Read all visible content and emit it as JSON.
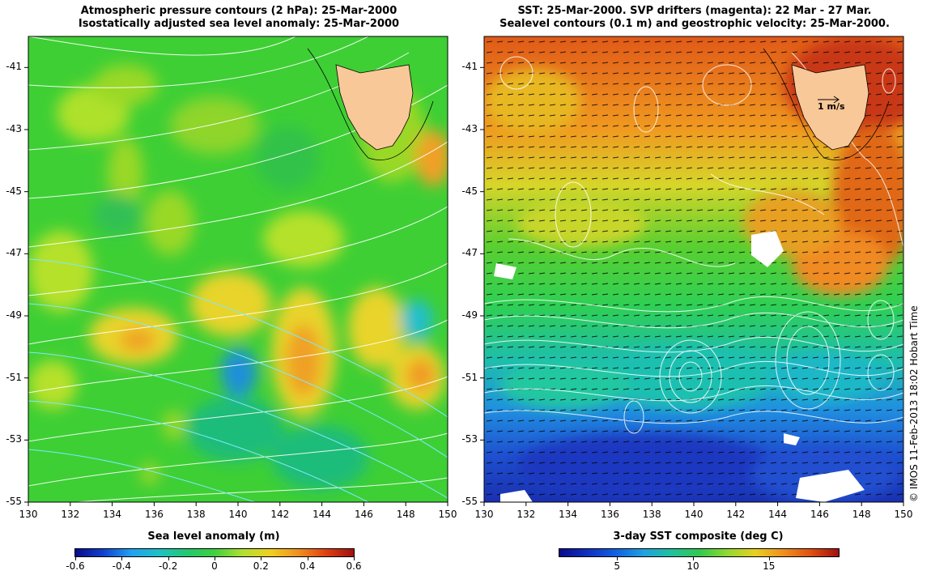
{
  "left_panel": {
    "title_line1": "Atmospheric pressure contours (2 hPa): 25-Mar-2000",
    "title_line2": "Isostatically adjusted sea level anomaly: 25-Mar-2000",
    "colorbar_label": "Sea level anomaly (m)",
    "colorbar_ticks": [
      "-0.6",
      "-0.4",
      "-0.2",
      "0",
      "0.2",
      "0.4",
      "0.6"
    ]
  },
  "right_panel": {
    "title_line1": "SST: 25-Mar-2000. SVP drifters (magenta): 22 Mar - 27 Mar.",
    "title_line2": "Sealevel contours (0.1 m) and geostrophic velocity: 25-Mar-2000.",
    "colorbar_label": "3-day SST composite (deg C)",
    "colorbar_ticks": [
      "5",
      "10",
      "15"
    ],
    "velocity_scale_label": "1 m/s"
  },
  "axes": {
    "lat_ticks": [
      "-41",
      "-43",
      "-45",
      "-47",
      "-49",
      "-51",
      "-53",
      "-55"
    ],
    "lon_ticks": [
      "130",
      "132",
      "134",
      "136",
      "138",
      "140",
      "142",
      "144",
      "146",
      "148",
      "150"
    ],
    "lat_range": [
      -55,
      -40
    ],
    "lon_range": [
      130,
      150
    ]
  },
  "credit": "© IMOS 11-Feb-2013 18:02 Hobart Time",
  "colors": {
    "land": "#f9c898",
    "sla_background": "#3ecf35",
    "sst_cold": "#1a3fd0",
    "sst_warm": "#e0641a"
  }
}
